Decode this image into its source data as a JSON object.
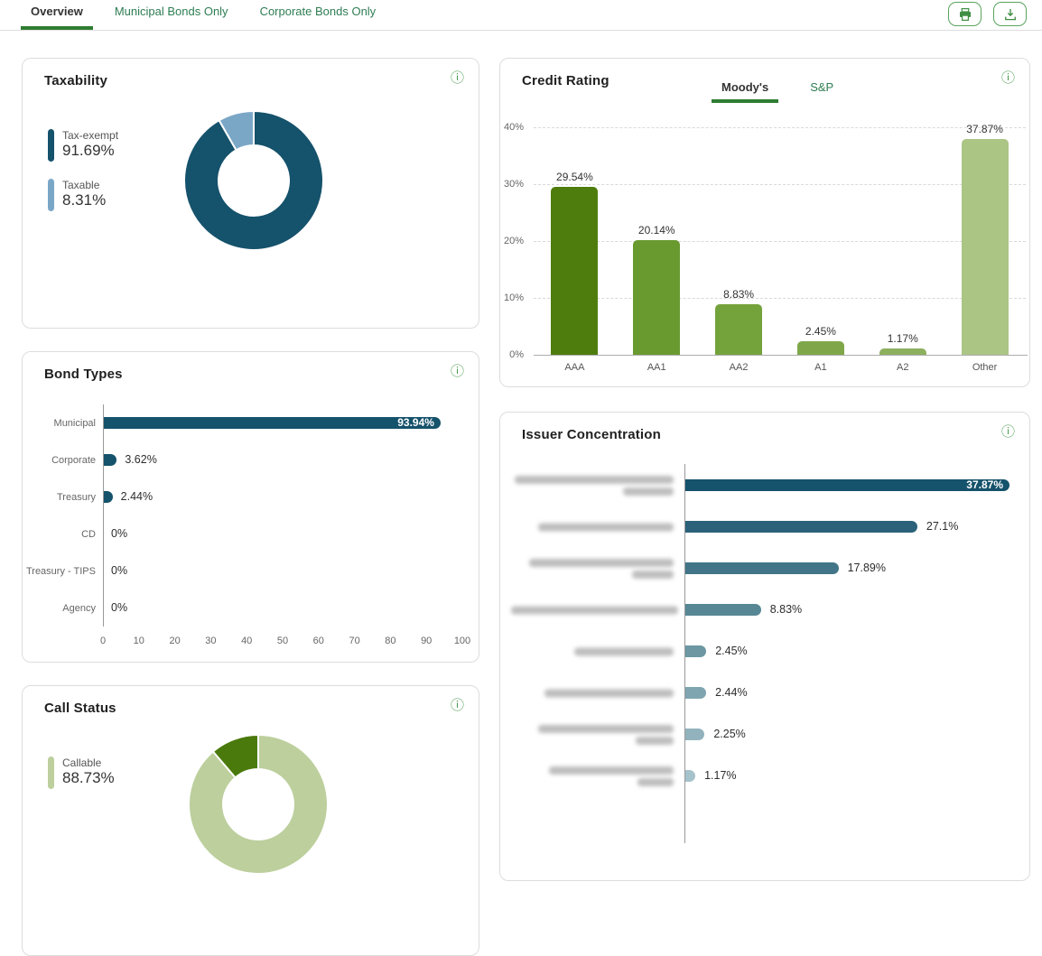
{
  "header": {
    "tabs": [
      {
        "label": "Overview",
        "active": true
      },
      {
        "label": "Municipal Bonds Only",
        "active": false
      },
      {
        "label": "Corporate Bonds Only",
        "active": false
      }
    ],
    "actions": [
      {
        "name": "print"
      },
      {
        "name": "download"
      }
    ]
  },
  "colors": {
    "accent_green": "#2E7D32",
    "link_green": "#2E7D52",
    "icon_green": "#4A9B4F",
    "teal_dark": "#15526B",
    "blue_light": "#7BA7C7"
  },
  "cards": {
    "taxability": {
      "title": "Taxability",
      "info_icon": "info"
    },
    "credit_rating": {
      "title": "Credit Rating",
      "tabs": [
        {
          "label": "Moody's",
          "active": true
        },
        {
          "label": "S&P",
          "active": false
        }
      ],
      "info_icon": "info"
    },
    "bond_types": {
      "title": "Bond Types",
      "info_icon": "info"
    },
    "issuer_concentration": {
      "title": "Issuer Concentration",
      "info_icon": "info",
      "issuer_names_blurred": true
    },
    "call_status": {
      "title": "Call Status",
      "info_icon": "info"
    }
  },
  "chart_data": [
    {
      "id": "taxability",
      "type": "pie",
      "title": "Taxability",
      "donut": true,
      "labels": [
        "Tax-exempt",
        "Taxable"
      ],
      "values": [
        91.69,
        8.31
      ],
      "value_labels": [
        "91.69%",
        "8.31%"
      ],
      "colors": [
        "#15526B",
        "#7BA7C7"
      ],
      "legend_position": "left"
    },
    {
      "id": "credit_rating",
      "type": "bar",
      "title": "Credit Rating",
      "source_tab": "Moody's",
      "categories": [
        "AAA",
        "AA1",
        "AA2",
        "A1",
        "A2",
        "Other"
      ],
      "values": [
        29.54,
        20.14,
        8.83,
        2.45,
        1.17,
        37.87
      ],
      "value_labels": [
        "29.54%",
        "20.14%",
        "8.83%",
        "2.45%",
        "1.17%",
        "37.87%"
      ],
      "colors": [
        "#4E7D0D",
        "#699A2F",
        "#74A23B",
        "#7FA74A",
        "#8DB05E",
        "#ABC585"
      ],
      "ylim": [
        0,
        40
      ],
      "yticks": [
        "0%",
        "10%",
        "20%",
        "30%",
        "40%"
      ],
      "grid": "dashed-horizontal"
    },
    {
      "id": "bond_types",
      "type": "bar-horizontal",
      "title": "Bond Types",
      "categories": [
        "Municipal",
        "Corporate",
        "Treasury",
        "CD",
        "Treasury - TIPS",
        "Agency"
      ],
      "values": [
        93.94,
        3.62,
        2.44,
        0,
        0,
        0
      ],
      "value_labels": [
        "93.94%",
        "3.62%",
        "2.44%",
        "0%",
        "0%",
        "0%"
      ],
      "color": "#15526B",
      "xlim": [
        0,
        100
      ],
      "xticks": [
        "0",
        "10",
        "20",
        "30",
        "40",
        "50",
        "60",
        "70",
        "80",
        "90",
        "100"
      ]
    },
    {
      "id": "issuer_concentration",
      "type": "bar-horizontal",
      "title": "Issuer Concentration",
      "labels_redacted": true,
      "values": [
        37.87,
        27.1,
        17.89,
        8.83,
        2.45,
        2.44,
        2.25,
        1.17
      ],
      "value_labels": [
        "37.87%",
        "27.1%",
        "17.89%",
        "8.83%",
        "2.45%",
        "2.44%",
        "2.25%",
        "1.17%"
      ],
      "colors": [
        "#15526B",
        "#2B6279",
        "#417587",
        "#578795",
        "#6C97A3",
        "#7FA5B0",
        "#92B3BD",
        "#A6C2CB"
      ],
      "xlim": [
        0,
        40
      ],
      "redacted_label_lines": [
        [
          176,
          56
        ],
        [
          150
        ],
        [
          160,
          46
        ],
        [
          185
        ],
        [
          110
        ],
        [
          143
        ],
        [
          150,
          42
        ],
        [
          138,
          40
        ]
      ]
    },
    {
      "id": "call_status",
      "type": "pie",
      "title": "Call Status",
      "donut": true,
      "labels": [
        "Callable",
        ""
      ],
      "values": [
        88.73,
        11.27
      ],
      "value_labels": [
        "88.73%",
        ""
      ],
      "colors": [
        "#BCCF9D",
        "#4A7A0C"
      ],
      "legend_position": "left"
    }
  ]
}
